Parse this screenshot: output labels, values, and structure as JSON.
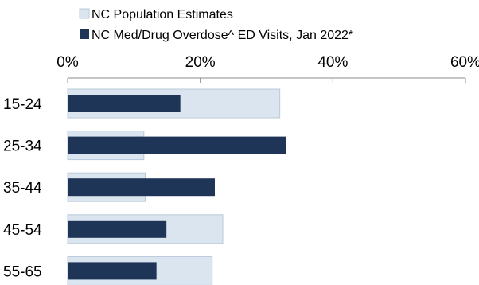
{
  "chart_data": {
    "type": "bar",
    "orientation": "horizontal",
    "categories": [
      "15-24",
      "25-34",
      "35-44",
      "45-54",
      "55-65"
    ],
    "series": [
      {
        "name": "NC Population Estimates",
        "color": "#dae5ef",
        "border": "#b8cada",
        "values": [
          32,
          11.5,
          11.7,
          23.4,
          21.8
        ]
      },
      {
        "name": "NC Med/Drug Overdose^ ED Visits, Jan 2022*",
        "color": "#1e3557",
        "values": [
          17,
          33,
          22.2,
          14.9,
          13.4
        ]
      }
    ],
    "xlim": [
      0,
      60
    ],
    "xticks": [
      "0%",
      "20%",
      "40%",
      "60%"
    ],
    "xtick_values": [
      0,
      20,
      40,
      60
    ],
    "axis_position": "top",
    "legend_position": "top",
    "grid": false
  }
}
